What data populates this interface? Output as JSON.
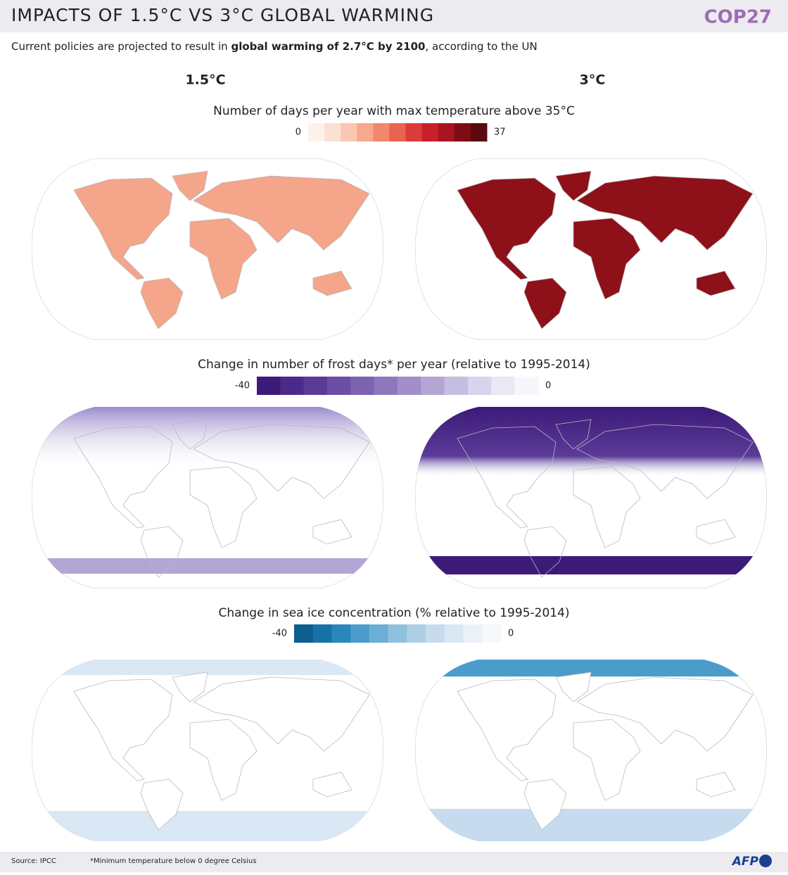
{
  "header": {
    "title": "IMPACTS OF 1.5°C VS 3°C GLOBAL WARMING",
    "brand": "COP27"
  },
  "subtitle": {
    "before": "Current policies are projected to result in ",
    "bold": "global warming of 2.7°C by 2100",
    "after": ", according to the UN"
  },
  "columns": [
    "1.5°C",
    "3°C"
  ],
  "panels": [
    {
      "title": "Number of days per year with max temperature above 35°C",
      "scale_left": "0",
      "scale_right": "37",
      "colors": [
        "#fdf1ec",
        "#fde0d4",
        "#fbc7b2",
        "#f8a88d",
        "#f3876b",
        "#ea6350",
        "#dc3d38",
        "#c8202a",
        "#a8141f",
        "#7d0d15",
        "#5a0a0e"
      ]
    },
    {
      "title": "Change in number of frost days* per year (relative to 1995-2014)",
      "scale_left": "-40",
      "scale_right": "0",
      "colors": [
        "#3d1a78",
        "#4c2a8a",
        "#5b3b98",
        "#6b4ea5",
        "#7c62b1",
        "#8e78bd",
        "#a08fc9",
        "#b3a6d5",
        "#c6bee1",
        "#d9d4ec",
        "#ebe8f5",
        "#f7f6fb"
      ]
    },
    {
      "title": "Change in sea ice concentration (% relative to 1995-2014)",
      "scale_left": "-40",
      "scale_right": "0",
      "colors": [
        "#0b5e8f",
        "#1672a6",
        "#2a87bb",
        "#4b9ccb",
        "#6daed6",
        "#8fc0de",
        "#adcfe6",
        "#c6dcee",
        "#dae7f4",
        "#ebf1f9",
        "#f6f9fc"
      ]
    }
  ],
  "footer": {
    "source": "Source: IPCC",
    "note": "*Minimum temperature below 0 degree Celsius",
    "logo": "AFP"
  }
}
